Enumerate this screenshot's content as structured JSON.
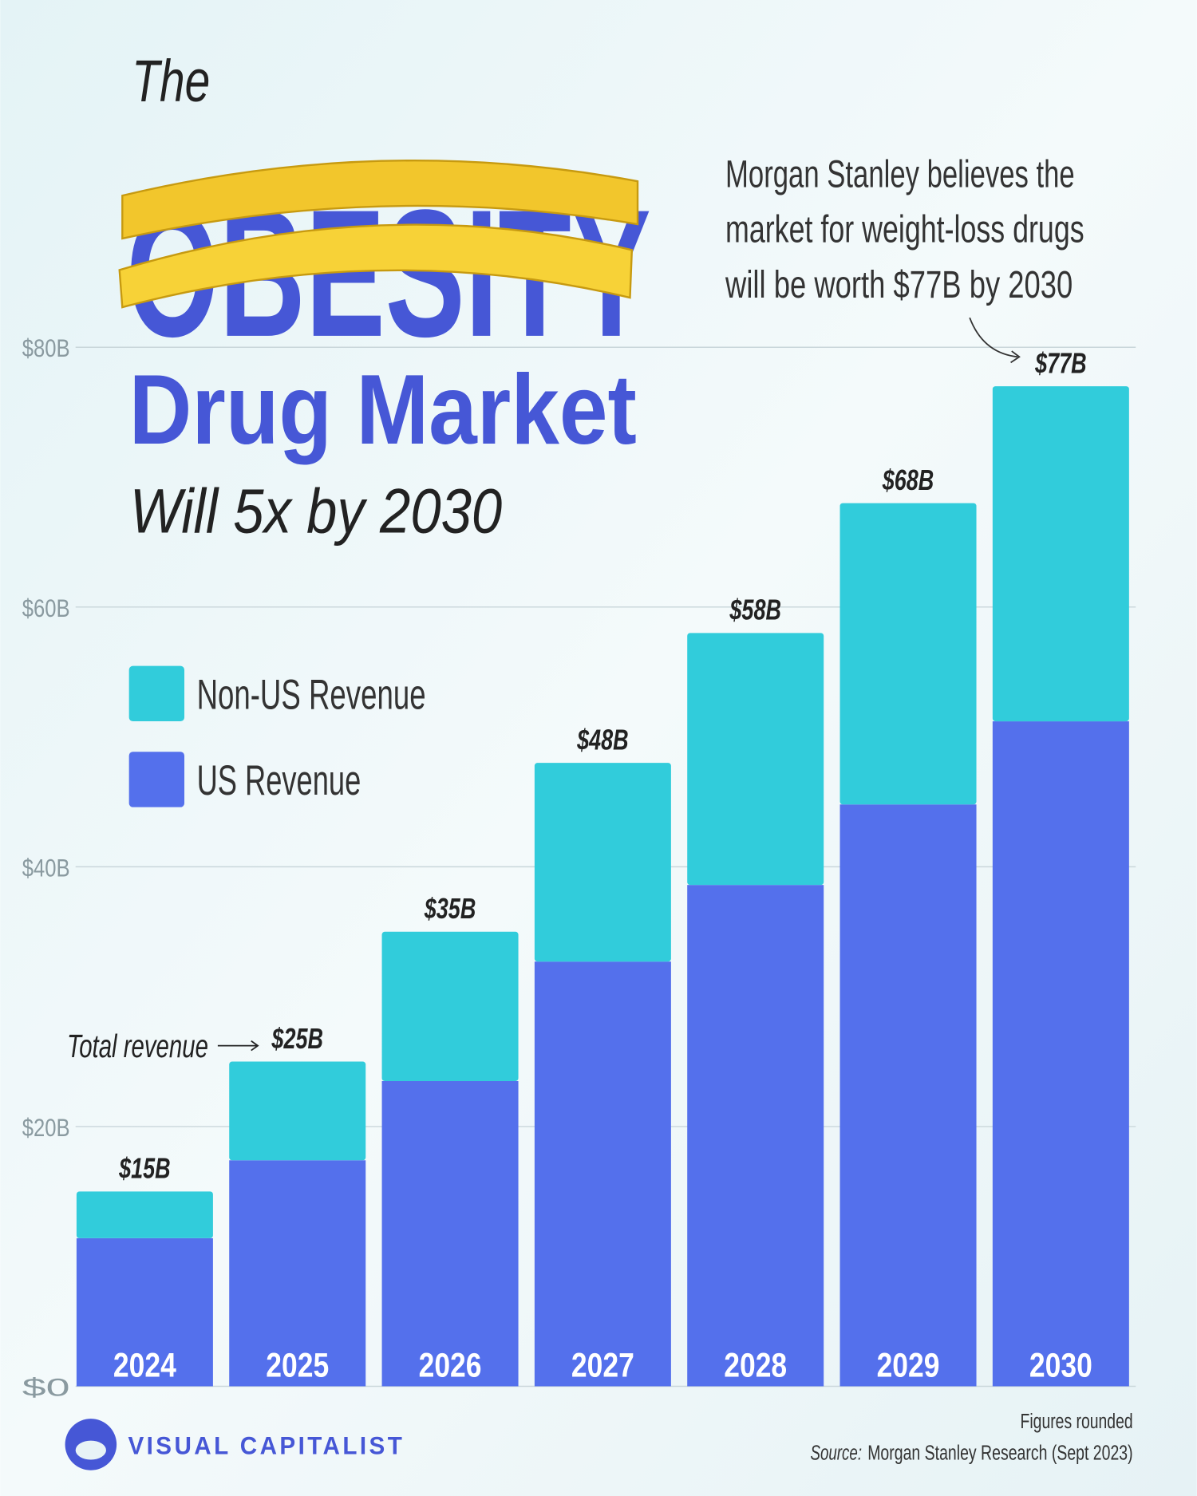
{
  "chart_data": {
    "type": "stacked_bar",
    "title": {
      "line1": "The",
      "line2": "OBESITY",
      "line3": "Drug Market",
      "line4": "Will 5x by 2030"
    },
    "annotation": [
      "Morgan Stanley believes the",
      "market for weight-loss drugs",
      "will be worth $77B by 2030"
    ],
    "total_annotation": "Total revenue",
    "categories": [
      "2024",
      "2025",
      "2026",
      "2027",
      "2028",
      "2029",
      "2030"
    ],
    "series": [
      {
        "name": "US Revenue",
        "color": "#5470ec",
        "values": [
          11.4,
          17.4,
          23.5,
          32.7,
          38.6,
          44.8,
          51.2
        ]
      },
      {
        "name": "Non-US Revenue",
        "color": "#31ccdb",
        "values": [
          3.6,
          7.6,
          11.5,
          15.3,
          19.4,
          23.2,
          25.8
        ]
      }
    ],
    "totals": {
      "values": [
        15,
        25,
        35,
        48,
        58,
        68,
        77
      ],
      "value_labels": [
        "$15B",
        "$25B",
        "$35B",
        "$48B",
        "$58B",
        "$68B",
        "$77B"
      ]
    },
    "ylim": [
      0,
      80
    ],
    "yticks": [
      {
        "value": 0,
        "label": "$0"
      },
      {
        "value": 20,
        "label": "$20B"
      },
      {
        "value": 40,
        "label": "$40B"
      },
      {
        "value": 60,
        "label": "$60B"
      },
      {
        "value": 80,
        "label": "$80B"
      }
    ],
    "grid": true,
    "note": "Figures rounded",
    "source_label": "Source:",
    "source": "Morgan Stanley Research (Sept 2023)",
    "brand": "VISUAL CAPITALIST"
  }
}
